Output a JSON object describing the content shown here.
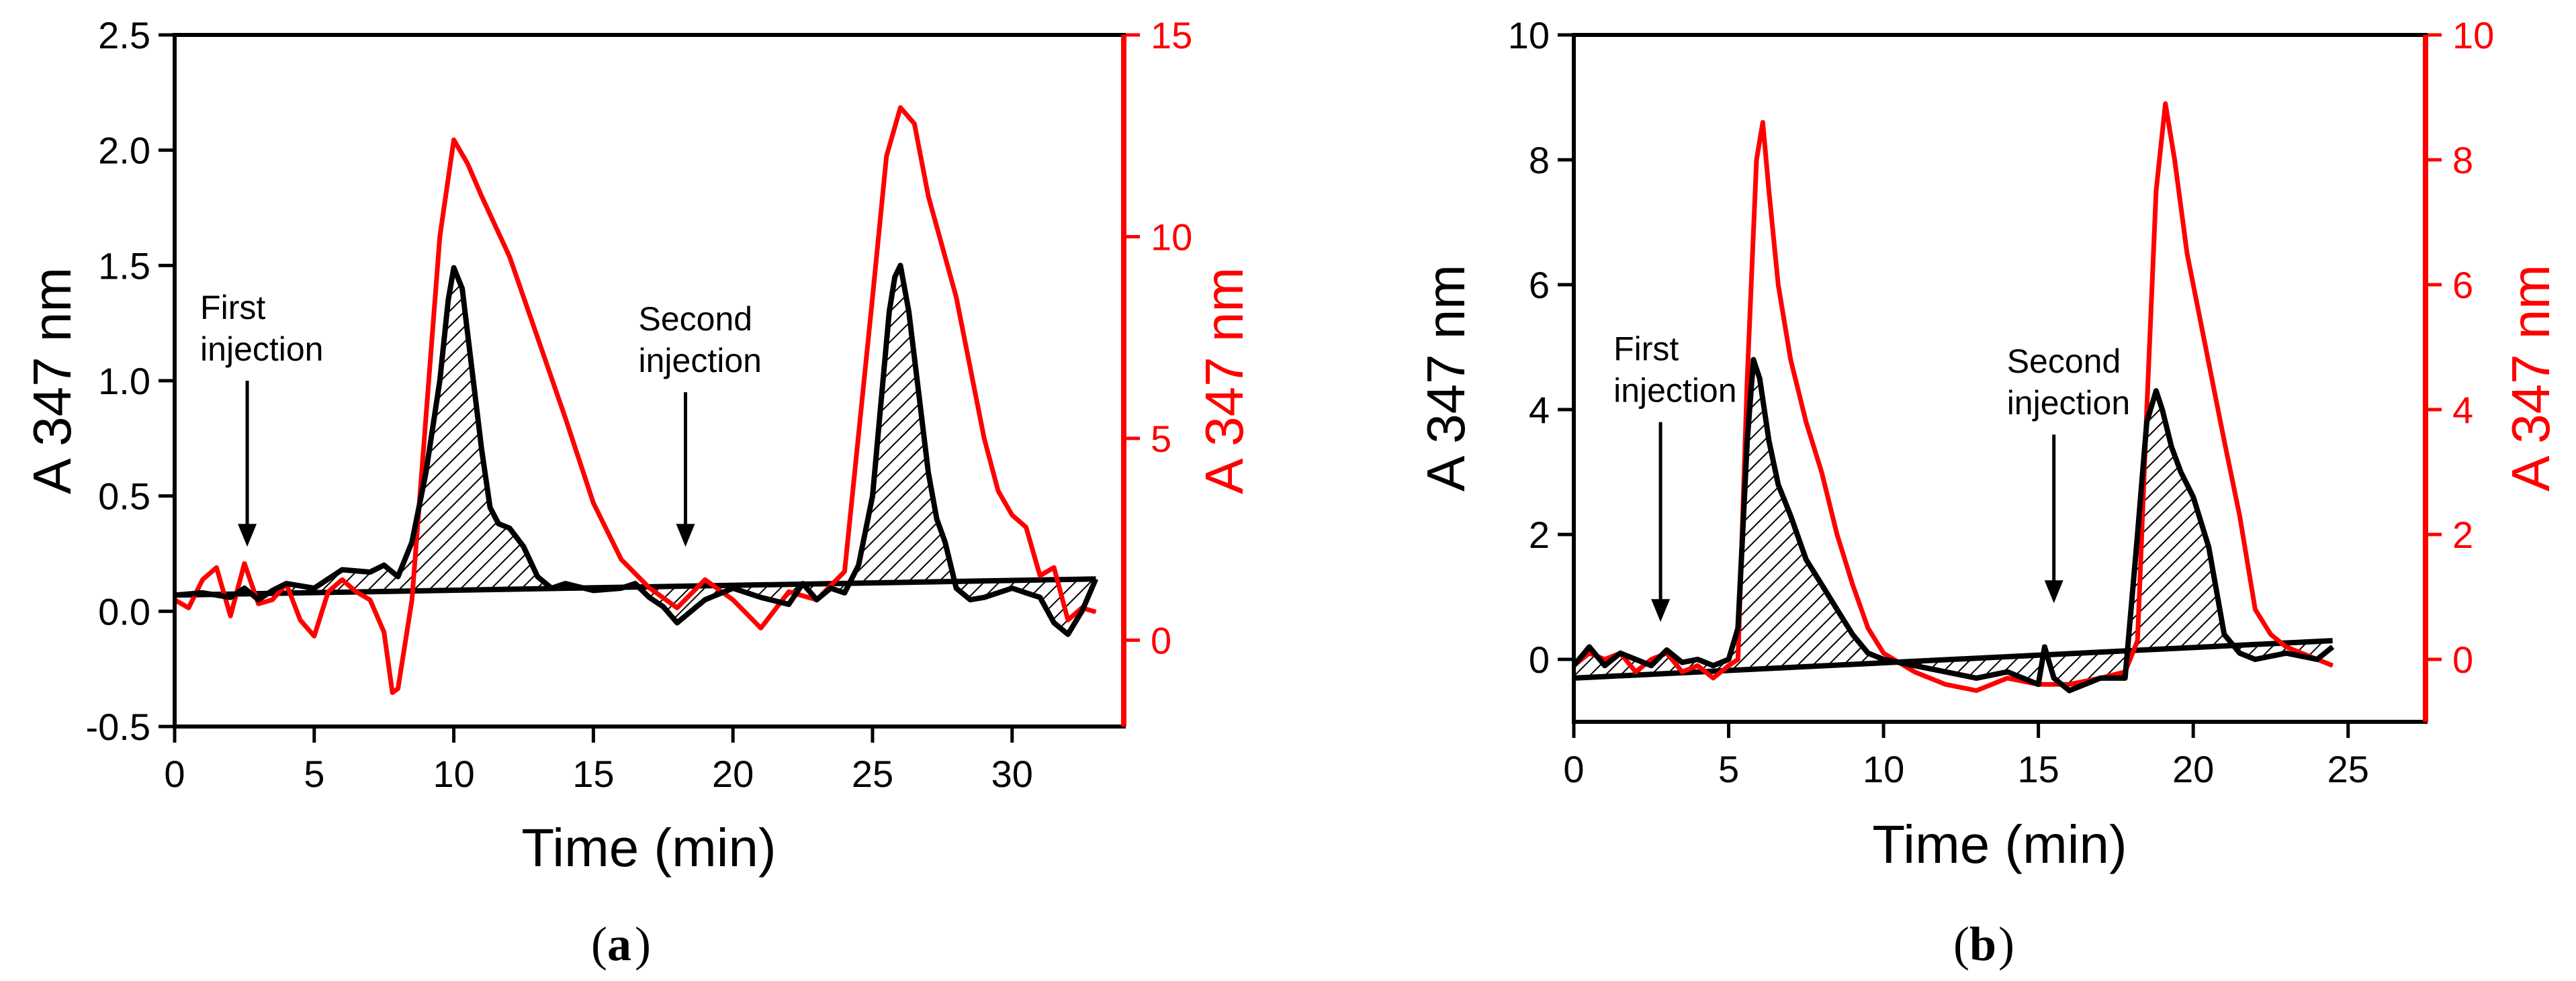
{
  "chart_data": [
    {
      "type": "line",
      "panel_label": "a",
      "xlabel": "Time (min)",
      "ylabel_left": "A 347 nm",
      "ylabel_right": "A 347 nm",
      "left_color": "#000000",
      "right_color": "#ff0000",
      "xlim": [
        0,
        34
      ],
      "ylim_left": [
        -0.5,
        2.5
      ],
      "ylim_right": [
        -2.14,
        15
      ],
      "x_ticks": [
        0,
        5,
        10,
        15,
        20,
        25,
        30
      ],
      "x_tick_labels": [
        "0",
        "5",
        "10",
        "15",
        "20",
        "25",
        "30"
      ],
      "y_left_ticks": [
        -0.5,
        0.0,
        0.5,
        1.0,
        1.5,
        2.0,
        2.5
      ],
      "y_left_tick_labels": [
        "-0.5",
        "0.0",
        "0.5",
        "1.0",
        "1.5",
        "2.0",
        "2.5"
      ],
      "y_right_ticks": [
        0,
        5,
        10,
        15
      ],
      "y_right_tick_labels": [
        "0",
        "5",
        "10",
        "15"
      ],
      "annotations": [
        {
          "lines": [
            "First",
            "injection"
          ],
          "arrow_x": 2.6,
          "arrow_y_from": 1.0,
          "arrow_y_to": 0.28
        },
        {
          "lines": [
            "Second",
            "injection"
          ],
          "arrow_x": 18.3,
          "arrow_y_from": 0.95,
          "arrow_y_to": 0.28
        }
      ],
      "baseline": {
        "x": [
          0,
          33
        ],
        "y": [
          0.07,
          0.14
        ]
      },
      "series": [
        {
          "name": "black trace",
          "axis": "left",
          "x": [
            0,
            1,
            2,
            2.5,
            3,
            3.5,
            4,
            5,
            6,
            7,
            7.5,
            8,
            8.5,
            9,
            9.5,
            9.8,
            10,
            10.3,
            10.6,
            11,
            11.3,
            11.6,
            12,
            12.5,
            13,
            13.5,
            14,
            15,
            16,
            16.5,
            17,
            17.5,
            18,
            18.5,
            19,
            20,
            21,
            22,
            22.5,
            23,
            23.5,
            24,
            24.5,
            25,
            25.3,
            25.6,
            25.8,
            26,
            26.3,
            26.6,
            27,
            27.3,
            27.6,
            28,
            28.5,
            29,
            30,
            30.5,
            31,
            31.5,
            32,
            32.5,
            33
          ],
          "y": [
            0.07,
            0.08,
            0.06,
            0.1,
            0.05,
            0.09,
            0.12,
            0.1,
            0.18,
            0.17,
            0.2,
            0.15,
            0.3,
            0.6,
            1.0,
            1.35,
            1.49,
            1.4,
            1.1,
            0.7,
            0.45,
            0.38,
            0.36,
            0.28,
            0.15,
            0.1,
            0.12,
            0.09,
            0.1,
            0.12,
            0.06,
            0.02,
            -0.05,
            0.0,
            0.05,
            0.1,
            0.06,
            0.03,
            0.12,
            0.05,
            0.1,
            0.08,
            0.2,
            0.5,
            0.9,
            1.3,
            1.45,
            1.5,
            1.3,
            1.0,
            0.6,
            0.4,
            0.3,
            0.1,
            0.05,
            0.06,
            0.1,
            0.08,
            0.06,
            -0.05,
            -0.1,
            0.0,
            0.14
          ]
        },
        {
          "name": "red trace",
          "axis": "right",
          "x": [
            0,
            0.5,
            1,
            1.5,
            2,
            2.5,
            3,
            3.5,
            4,
            4.5,
            5,
            5.5,
            6,
            6.5,
            7,
            7.5,
            7.8,
            8,
            8.5,
            9,
            9.5,
            10,
            10.5,
            11,
            12,
            13,
            14,
            15,
            16,
            17,
            18,
            19,
            20,
            21,
            22,
            23,
            24,
            25,
            25.5,
            26,
            26.5,
            27,
            28,
            29,
            29.5,
            30,
            30.5,
            31,
            31.5,
            32,
            32.5,
            33
          ],
          "y": [
            1.0,
            0.8,
            1.5,
            1.8,
            0.6,
            1.9,
            0.9,
            1.0,
            1.4,
            0.5,
            0.1,
            1.2,
            1.5,
            1.2,
            1.0,
            0.2,
            -1.3,
            -1.2,
            1.0,
            5.5,
            10.0,
            12.4,
            11.8,
            11.0,
            9.5,
            7.5,
            5.5,
            3.4,
            2.0,
            1.3,
            0.8,
            1.5,
            1.0,
            0.3,
            1.2,
            1.0,
            1.7,
            8.5,
            12.0,
            13.2,
            12.8,
            11.0,
            8.5,
            5.0,
            3.7,
            3.1,
            2.8,
            1.6,
            1.8,
            0.5,
            0.8,
            0.7
          ]
        }
      ]
    },
    {
      "type": "line",
      "panel_label": "b",
      "xlabel": "Time (min)",
      "ylabel_left": "A 347 nm",
      "ylabel_right": "A 347 nm",
      "left_color": "#000000",
      "right_color": "#ff0000",
      "xlim": [
        0,
        27.5
      ],
      "ylim_left": [
        -1,
        10
      ],
      "ylim_right": [
        -1,
        10
      ],
      "x_ticks": [
        0,
        5,
        10,
        15,
        20,
        25
      ],
      "x_tick_labels": [
        "0",
        "5",
        "10",
        "15",
        "20",
        "25"
      ],
      "y_left_ticks": [
        0,
        2,
        4,
        6,
        8,
        10
      ],
      "y_left_tick_labels": [
        "0",
        "2",
        "4",
        "6",
        "8",
        "10"
      ],
      "y_right_ticks": [
        0,
        2,
        4,
        6,
        8,
        10
      ],
      "y_right_tick_labels": [
        "0",
        "2",
        "4",
        "6",
        "8",
        "10"
      ],
      "annotations": [
        {
          "lines": [
            "First",
            "injection"
          ],
          "arrow_x": 2.8,
          "arrow_y_from": 3.8,
          "arrow_y_to": 0.6
        },
        {
          "lines": [
            "Second",
            "injection"
          ],
          "arrow_x": 15.5,
          "arrow_y_from": 3.6,
          "arrow_y_to": 0.9
        }
      ],
      "baseline": {
        "x": [
          0,
          24.5
        ],
        "y": [
          -0.3,
          0.3
        ]
      },
      "series": [
        {
          "name": "black trace",
          "axis": "left",
          "x": [
            0,
            0.5,
            1,
            1.5,
            2,
            2.5,
            3,
            3.5,
            4,
            4.5,
            5,
            5.3,
            5.6,
            5.8,
            6,
            6.3,
            6.6,
            7,
            7.5,
            8,
            8.5,
            9,
            9.5,
            10,
            11,
            12,
            13,
            14,
            15,
            15.2,
            15.5,
            16,
            17,
            17.8,
            18.2,
            18.5,
            18.8,
            19,
            19.3,
            19.6,
            20,
            20.5,
            21,
            21.5,
            22,
            23,
            24,
            24.5
          ],
          "y": [
            -0.1,
            0.2,
            -0.1,
            0.1,
            0.0,
            -0.1,
            0.15,
            -0.05,
            0.0,
            -0.1,
            0.0,
            0.5,
            3.5,
            4.8,
            4.5,
            3.5,
            2.8,
            2.3,
            1.6,
            1.2,
            0.8,
            0.4,
            0.1,
            0.0,
            -0.1,
            -0.2,
            -0.3,
            -0.2,
            -0.4,
            0.2,
            -0.3,
            -0.5,
            -0.3,
            -0.3,
            2.0,
            3.8,
            4.3,
            4.0,
            3.4,
            3.0,
            2.6,
            1.8,
            0.4,
            0.1,
            0.0,
            0.1,
            0.0,
            0.2
          ]
        },
        {
          "name": "red trace",
          "axis": "right",
          "x": [
            0,
            0.5,
            1,
            1.5,
            2,
            2.5,
            3,
            3.5,
            4,
            4.5,
            5,
            5.3,
            5.6,
            5.9,
            6.1,
            6.3,
            6.6,
            7,
            7.5,
            8,
            8.5,
            9,
            9.5,
            10,
            11,
            12,
            13,
            14,
            15,
            16,
            17,
            17.8,
            18.2,
            18.5,
            18.8,
            19.1,
            19.4,
            19.8,
            20.2,
            20.6,
            21,
            21.5,
            22,
            22.5,
            23,
            24,
            24.5
          ],
          "y": [
            -0.1,
            0.1,
            0.0,
            0.1,
            -0.2,
            0.0,
            0.1,
            -0.2,
            -0.1,
            -0.3,
            -0.1,
            0.0,
            4.5,
            8.0,
            8.6,
            7.5,
            6.0,
            4.8,
            3.8,
            3.0,
            2.0,
            1.2,
            0.5,
            0.1,
            -0.2,
            -0.4,
            -0.5,
            -0.3,
            -0.4,
            -0.4,
            -0.3,
            -0.2,
            0.3,
            4.0,
            7.5,
            8.9,
            8.0,
            6.5,
            5.5,
            4.5,
            3.5,
            2.3,
            0.8,
            0.4,
            0.2,
            0.0,
            -0.1
          ]
        }
      ]
    }
  ]
}
